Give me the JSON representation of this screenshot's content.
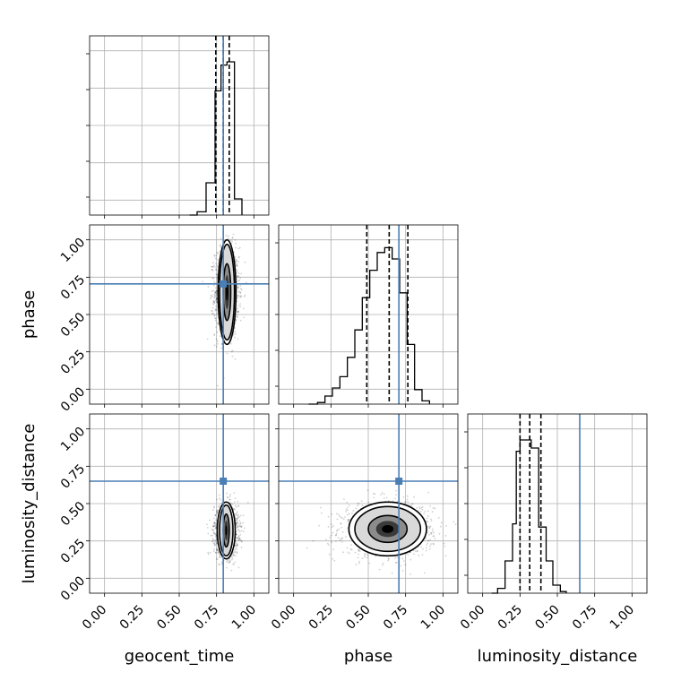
{
  "chart_data": {
    "type": "corner",
    "parameters": [
      "geocent_time",
      "phase",
      "luminosity_distance"
    ],
    "axis_labels": {
      "geocent_time": "geocent_time",
      "phase": "phase",
      "luminosity_distance": "luminosity_distance"
    },
    "range": [
      -0.1,
      1.1
    ],
    "ticks": [
      0.0,
      0.25,
      0.5,
      0.75,
      1.0
    ],
    "tick_labels": [
      "0.00",
      "0.25",
      "0.50",
      "0.75",
      "1.00"
    ],
    "grid": true,
    "colors": {
      "truth": "#4a7fb5",
      "hist": "#000000",
      "frame": "#000000",
      "grid": "#b0b0b0"
    },
    "truths": {
      "geocent_time": 0.795,
      "phase": 0.705,
      "luminosity_distance": 0.65
    },
    "histograms": {
      "geocent_time": {
        "bin_edges": [
          0.57,
          0.62,
          0.68,
          0.74,
          0.78,
          0.82,
          0.87,
          0.92
        ],
        "counts": [
          0.0,
          0.02,
          0.2,
          0.77,
          0.93,
          0.95,
          0.1
        ],
        "quantiles": [
          0.745,
          0.795,
          0.835
        ]
      },
      "phase": {
        "bin_edges": [
          0.1,
          0.16,
          0.21,
          0.26,
          0.31,
          0.36,
          0.41,
          0.46,
          0.51,
          0.56,
          0.61,
          0.66,
          0.71,
          0.76,
          0.81,
          0.86,
          0.91
        ],
        "counts": [
          0.0,
          0.01,
          0.05,
          0.1,
          0.17,
          0.29,
          0.46,
          0.66,
          0.83,
          0.94,
          0.97,
          0.9,
          0.69,
          0.37,
          0.09,
          0.02
        ],
        "quantiles": [
          0.49,
          0.64,
          0.765
        ]
      },
      "luminosity_distance": {
        "bin_edges": [
          0.06,
          0.1,
          0.15,
          0.2,
          0.225,
          0.25,
          0.325,
          0.375,
          0.425,
          0.47,
          0.52,
          0.56
        ],
        "counts": [
          0.0,
          0.03,
          0.2,
          0.43,
          0.88,
          0.95,
          0.9,
          0.41,
          0.2,
          0.05,
          0.01
        ],
        "quantiles": [
          0.25,
          0.315,
          0.39
        ]
      }
    },
    "joint": [
      {
        "x": "geocent_time",
        "y": "phase",
        "center": [
          0.82,
          0.65
        ],
        "sigma": [
          0.035,
          0.13
        ],
        "contour_radii": [
          [
            0.025,
            0.19
          ],
          [
            0.05,
            0.32
          ],
          [
            0.06,
            0.35
          ]
        ]
      },
      {
        "x": "geocent_time",
        "y": "luminosity_distance",
        "center": [
          0.815,
          0.32
        ],
        "sigma": [
          0.035,
          0.075
        ],
        "contour_radii": [
          [
            0.02,
            0.11
          ],
          [
            0.045,
            0.17
          ],
          [
            0.06,
            0.19
          ]
        ]
      },
      {
        "x": "phase",
        "y": "luminosity_distance",
        "center": [
          0.63,
          0.33
        ],
        "sigma": [
          0.13,
          0.075
        ],
        "contour_radii": [
          [
            0.13,
            0.09
          ],
          [
            0.22,
            0.15
          ],
          [
            0.26,
            0.18
          ]
        ]
      }
    ]
  }
}
